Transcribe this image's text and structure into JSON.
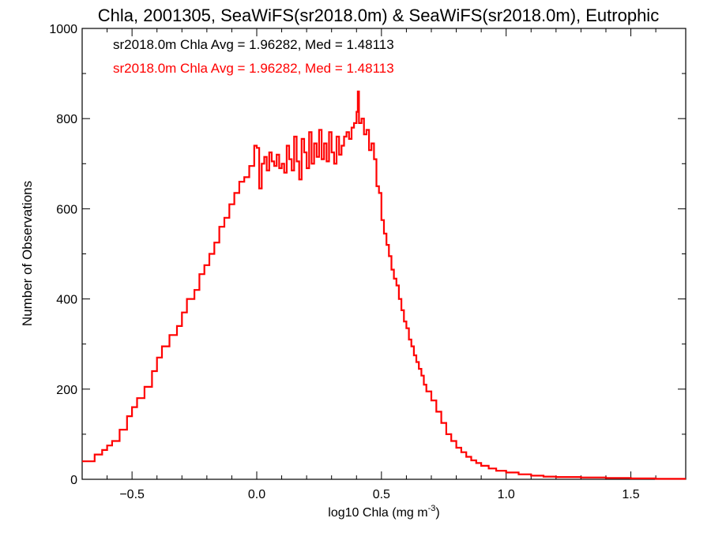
{
  "chart_data": {
    "type": "line",
    "title": "Chla, 2001305, SeaWiFS(sr2018.0m) & SeaWiFS(sr2018.0m), Eutrophic",
    "xlabel": "log10 Chla (mg m",
    "xlabel_sup": "-3",
    "xlabel_close": ")",
    "ylabel": "Number of Observations",
    "xlim": [
      -0.7,
      1.72
    ],
    "ylim": [
      0,
      1000
    ],
    "xticks": [
      -0.5,
      0.0,
      0.5,
      1.0,
      1.5
    ],
    "xtick_labels": [
      "−0.5",
      "0.0",
      "0.5",
      "1.0",
      "1.5"
    ],
    "yticks": [
      0,
      200,
      400,
      600,
      800,
      1000
    ],
    "ytick_labels": [
      "0",
      "200",
      "400",
      "600",
      "800",
      "1000"
    ],
    "annotations": [
      {
        "text": "sr2018.0m Chla Avg = 1.96282, Med = 1.48113",
        "color": "#000000"
      },
      {
        "text": "sr2018.0m Chla Avg = 1.96282, Med = 1.48113",
        "color": "#ff0000"
      }
    ],
    "series": [
      {
        "color": "#ff0000",
        "step": true,
        "points": [
          [
            -0.7,
            40
          ],
          [
            -0.65,
            55
          ],
          [
            -0.62,
            65
          ],
          [
            -0.6,
            75
          ],
          [
            -0.58,
            85
          ],
          [
            -0.55,
            110
          ],
          [
            -0.52,
            140
          ],
          [
            -0.5,
            160
          ],
          [
            -0.48,
            180
          ],
          [
            -0.45,
            205
          ],
          [
            -0.42,
            240
          ],
          [
            -0.4,
            270
          ],
          [
            -0.38,
            295
          ],
          [
            -0.35,
            320
          ],
          [
            -0.32,
            340
          ],
          [
            -0.3,
            370
          ],
          [
            -0.28,
            400
          ],
          [
            -0.25,
            420
          ],
          [
            -0.23,
            455
          ],
          [
            -0.21,
            475
          ],
          [
            -0.19,
            500
          ],
          [
            -0.17,
            525
          ],
          [
            -0.15,
            560
          ],
          [
            -0.13,
            580
          ],
          [
            -0.11,
            610
          ],
          [
            -0.09,
            635
          ],
          [
            -0.07,
            660
          ],
          [
            -0.05,
            670
          ],
          [
            -0.03,
            695
          ],
          [
            -0.01,
            740
          ],
          [
            0.0,
            735
          ],
          [
            0.01,
            645
          ],
          [
            0.02,
            700
          ],
          [
            0.03,
            715
          ],
          [
            0.04,
            685
          ],
          [
            0.05,
            725
          ],
          [
            0.06,
            705
          ],
          [
            0.07,
            695
          ],
          [
            0.08,
            720
          ],
          [
            0.09,
            690
          ],
          [
            0.1,
            700
          ],
          [
            0.11,
            680
          ],
          [
            0.12,
            740
          ],
          [
            0.13,
            710
          ],
          [
            0.14,
            685
          ],
          [
            0.15,
            760
          ],
          [
            0.16,
            705
          ],
          [
            0.17,
            665
          ],
          [
            0.18,
            755
          ],
          [
            0.19,
            725
          ],
          [
            0.2,
            690
          ],
          [
            0.21,
            770
          ],
          [
            0.22,
            700
          ],
          [
            0.23,
            745
          ],
          [
            0.24,
            715
          ],
          [
            0.25,
            775
          ],
          [
            0.26,
            710
          ],
          [
            0.27,
            745
          ],
          [
            0.28,
            705
          ],
          [
            0.29,
            770
          ],
          [
            0.3,
            725
          ],
          [
            0.31,
            700
          ],
          [
            0.32,
            760
          ],
          [
            0.33,
            720
          ],
          [
            0.34,
            740
          ],
          [
            0.35,
            760
          ],
          [
            0.36,
            770
          ],
          [
            0.37,
            755
          ],
          [
            0.38,
            780
          ],
          [
            0.39,
            790
          ],
          [
            0.4,
            815
          ],
          [
            0.405,
            860
          ],
          [
            0.41,
            790
          ],
          [
            0.42,
            800
          ],
          [
            0.43,
            765
          ],
          [
            0.44,
            775
          ],
          [
            0.45,
            730
          ],
          [
            0.46,
            745
          ],
          [
            0.47,
            710
          ],
          [
            0.48,
            650
          ],
          [
            0.49,
            635
          ],
          [
            0.5,
            575
          ],
          [
            0.51,
            545
          ],
          [
            0.52,
            520
          ],
          [
            0.53,
            495
          ],
          [
            0.54,
            465
          ],
          [
            0.55,
            445
          ],
          [
            0.56,
            430
          ],
          [
            0.57,
            400
          ],
          [
            0.58,
            375
          ],
          [
            0.59,
            350
          ],
          [
            0.6,
            335
          ],
          [
            0.61,
            310
          ],
          [
            0.62,
            295
          ],
          [
            0.63,
            275
          ],
          [
            0.64,
            260
          ],
          [
            0.65,
            245
          ],
          [
            0.66,
            230
          ],
          [
            0.67,
            210
          ],
          [
            0.68,
            195
          ],
          [
            0.7,
            175
          ],
          [
            0.72,
            150
          ],
          [
            0.74,
            125
          ],
          [
            0.76,
            100
          ],
          [
            0.78,
            85
          ],
          [
            0.8,
            70
          ],
          [
            0.82,
            60
          ],
          [
            0.84,
            50
          ],
          [
            0.86,
            42
          ],
          [
            0.88,
            36
          ],
          [
            0.9,
            30
          ],
          [
            0.93,
            24
          ],
          [
            0.96,
            19
          ],
          [
            1.0,
            15
          ],
          [
            1.05,
            11
          ],
          [
            1.1,
            8
          ],
          [
            1.15,
            6
          ],
          [
            1.2,
            5
          ],
          [
            1.3,
            4
          ],
          [
            1.4,
            3
          ],
          [
            1.5,
            2
          ],
          [
            1.6,
            1
          ],
          [
            1.72,
            1
          ]
        ]
      }
    ]
  }
}
